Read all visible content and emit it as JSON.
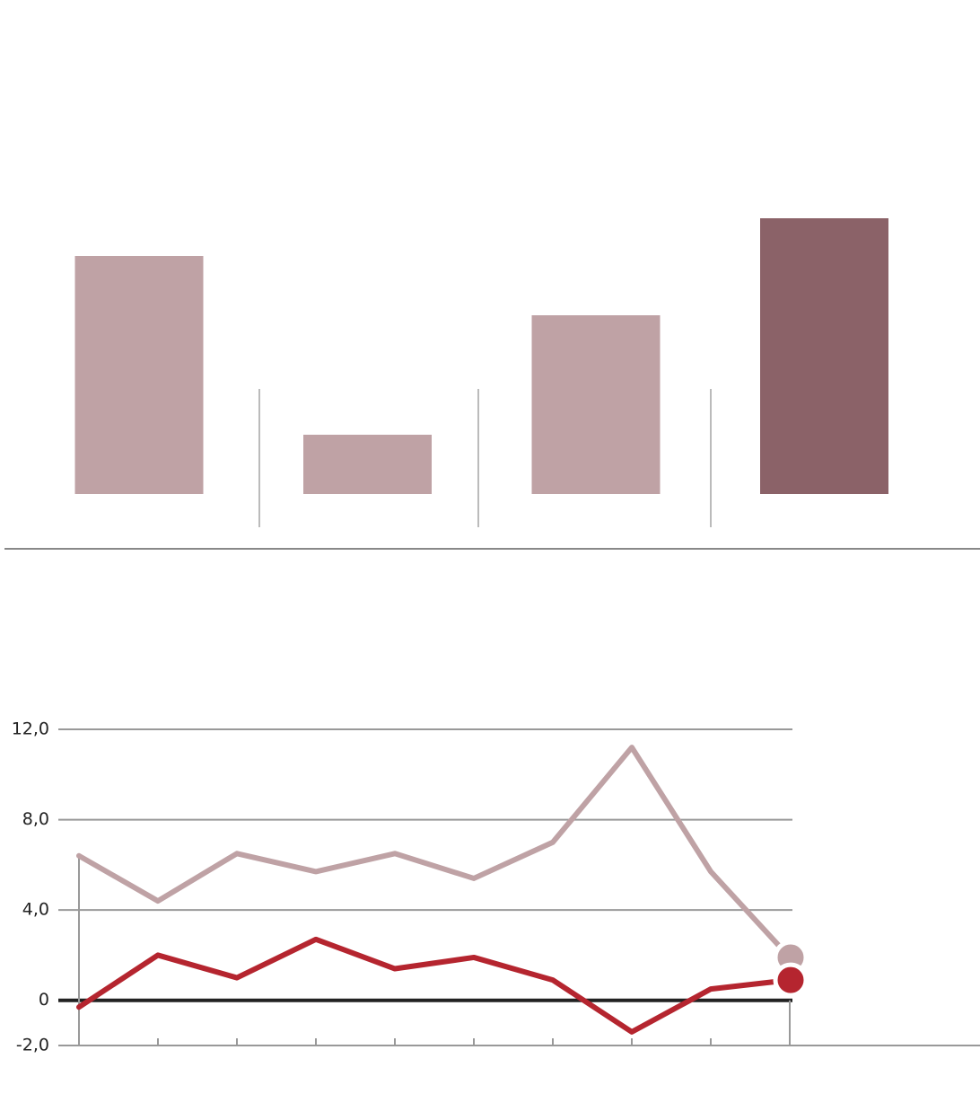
{
  "chart_data": [
    {
      "type": "bar",
      "categories": [
        null,
        null,
        null,
        null
      ],
      "values": [
        26.5,
        6.6,
        19.9,
        30.7
      ],
      "colors": [
        "#bfa2a5",
        "#bfa2a5",
        "#bfa2a5",
        "#8b6268"
      ],
      "ylim": [
        0,
        55
      ]
    },
    {
      "type": "line",
      "categories": [
        null,
        null,
        null,
        null,
        null,
        null,
        null,
        null,
        null,
        null
      ],
      "series": [
        {
          "color": "#bfa2a5",
          "values": [
            6.4,
            4.4,
            6.5,
            5.7,
            6.5,
            5.4,
            7.0,
            11.2,
            5.7,
            1.9
          ]
        },
        {
          "color": "#b5252f",
          "values": [
            -0.3,
            2.0,
            1.0,
            2.7,
            1.4,
            1.9,
            0.9,
            -1.4,
            0.5,
            0.9
          ]
        }
      ],
      "ylim": [
        -2,
        12
      ],
      "yticks": [
        {
          "value": -2,
          "label": "-2,0"
        },
        0,
        {
          "value": 4,
          "label": "4,0"
        },
        {
          "value": 8,
          "label": "8,0"
        },
        {
          "value": 12,
          "label": "12,0"
        }
      ],
      "grid": true
    }
  ]
}
